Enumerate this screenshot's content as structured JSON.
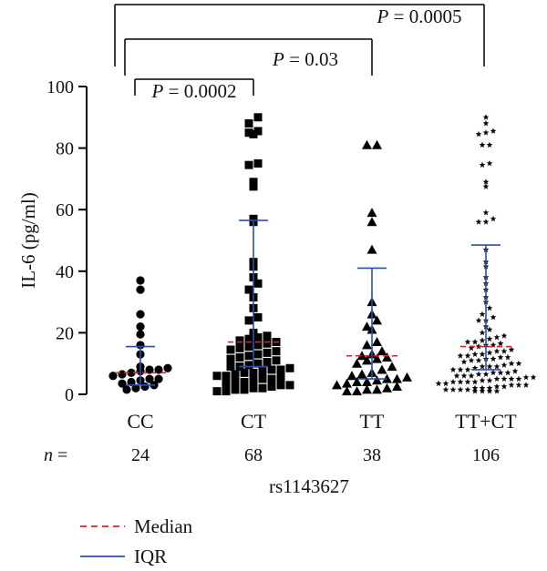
{
  "chart_data": {
    "type": "scatter",
    "subtype": "dot-plot with median and IQR",
    "ylabel": "IL-6 (pg/ml)",
    "xlabel": "rs1143627",
    "ylim": [
      0,
      100
    ],
    "yticks": [
      0,
      20,
      40,
      60,
      80,
      100
    ],
    "categories": [
      "CC",
      "CT",
      "TT",
      "TT+CT"
    ],
    "n_label": "n =",
    "n_values": [
      "24",
      "68",
      "38",
      "106"
    ],
    "colors": {
      "points": "#000000",
      "median": "#e02020",
      "iqr": "#2a4fb0",
      "axis": "#000000"
    },
    "groups": [
      {
        "name": "CC",
        "marker": "circle",
        "median": 7,
        "q1": 3,
        "q3": 15.5,
        "values": [
          37,
          34,
          26,
          22,
          19.5,
          16,
          13,
          9,
          8.5,
          8,
          8,
          7.5,
          7,
          6.5,
          6,
          5,
          5,
          4.5,
          4,
          3.5,
          3,
          2.5,
          2,
          1.5
        ]
      },
      {
        "name": "CT",
        "marker": "square",
        "median": 17,
        "q1": 9,
        "q3": 56.5,
        "values": [
          90,
          88,
          85.5,
          85,
          84.5,
          75,
          74.5,
          69,
          67.5,
          57,
          56,
          43,
          41.5,
          38,
          36,
          34,
          31.5,
          28,
          25,
          24,
          20,
          19,
          18.5,
          18,
          17.5,
          17,
          16.5,
          16,
          15.5,
          15,
          14.5,
          14,
          13.5,
          13,
          12.5,
          12,
          11.5,
          11,
          10.5,
          10,
          9.5,
          9,
          9,
          8.5,
          8,
          8,
          7.5,
          7,
          7,
          6.5,
          6,
          6,
          5.5,
          5,
          5,
          4.5,
          4,
          4,
          3.5,
          3,
          3,
          2.5,
          2,
          2,
          1.5,
          1.5,
          1,
          1
        ]
      },
      {
        "name": "TT",
        "marker": "triangle",
        "median": 12.5,
        "q1": 5,
        "q3": 41,
        "values": [
          81,
          81,
          59,
          56,
          47,
          30,
          26,
          24,
          22,
          21,
          17,
          16,
          14,
          13,
          12.5,
          12,
          11.5,
          11,
          10,
          9,
          8,
          7,
          6.5,
          6,
          5.5,
          5,
          5,
          4.5,
          4,
          4,
          3.5,
          3,
          2.5,
          2,
          1.5,
          1.5,
          1,
          1
        ]
      },
      {
        "name": "TT+CT",
        "marker": "star",
        "median": 15.5,
        "q1": 8,
        "q3": 48.5,
        "values": [
          90,
          88,
          85.5,
          85,
          84.5,
          81,
          81,
          75,
          74.5,
          69,
          67.5,
          59,
          57,
          56,
          56,
          47,
          43,
          41.5,
          38,
          36,
          34,
          31.5,
          30,
          28,
          26,
          25,
          24,
          24,
          22,
          21,
          20,
          19,
          18.5,
          18,
          17.5,
          17,
          17,
          16.5,
          16,
          16,
          15.5,
          15,
          14.5,
          14,
          14,
          13.5,
          13,
          13,
          12.5,
          12.5,
          12,
          12,
          11.5,
          11.5,
          11,
          11,
          10.5,
          10,
          10,
          9.5,
          9,
          9,
          9,
          8.5,
          8,
          8,
          8,
          7.5,
          7,
          7,
          7,
          6.5,
          6.5,
          6,
          6,
          6,
          5.5,
          5.5,
          5,
          5,
          5,
          5,
          4.5,
          4.5,
          4,
          4,
          4,
          4,
          3.5,
          3.5,
          3,
          3,
          3,
          2.5,
          2.5,
          2,
          2,
          2,
          1.5,
          1.5,
          1.5,
          1.5,
          1,
          1,
          1,
          1
        ]
      }
    ],
    "comparisons": [
      {
        "from": "CC",
        "to": "CT",
        "label_p": "P",
        "label_rest": " = 0.0002"
      },
      {
        "from": "CC",
        "to": "TT",
        "label_p": "P",
        "label_rest": " = 0.03"
      },
      {
        "from": "CC",
        "to": "TT+CT",
        "label_p": "P",
        "label_rest": " = 0.0005"
      }
    ],
    "legend": [
      {
        "label": "Median",
        "style": "dashed",
        "color": "#e02020"
      },
      {
        "label": "IQR",
        "style": "solid",
        "color": "#2a4fb0"
      }
    ]
  }
}
